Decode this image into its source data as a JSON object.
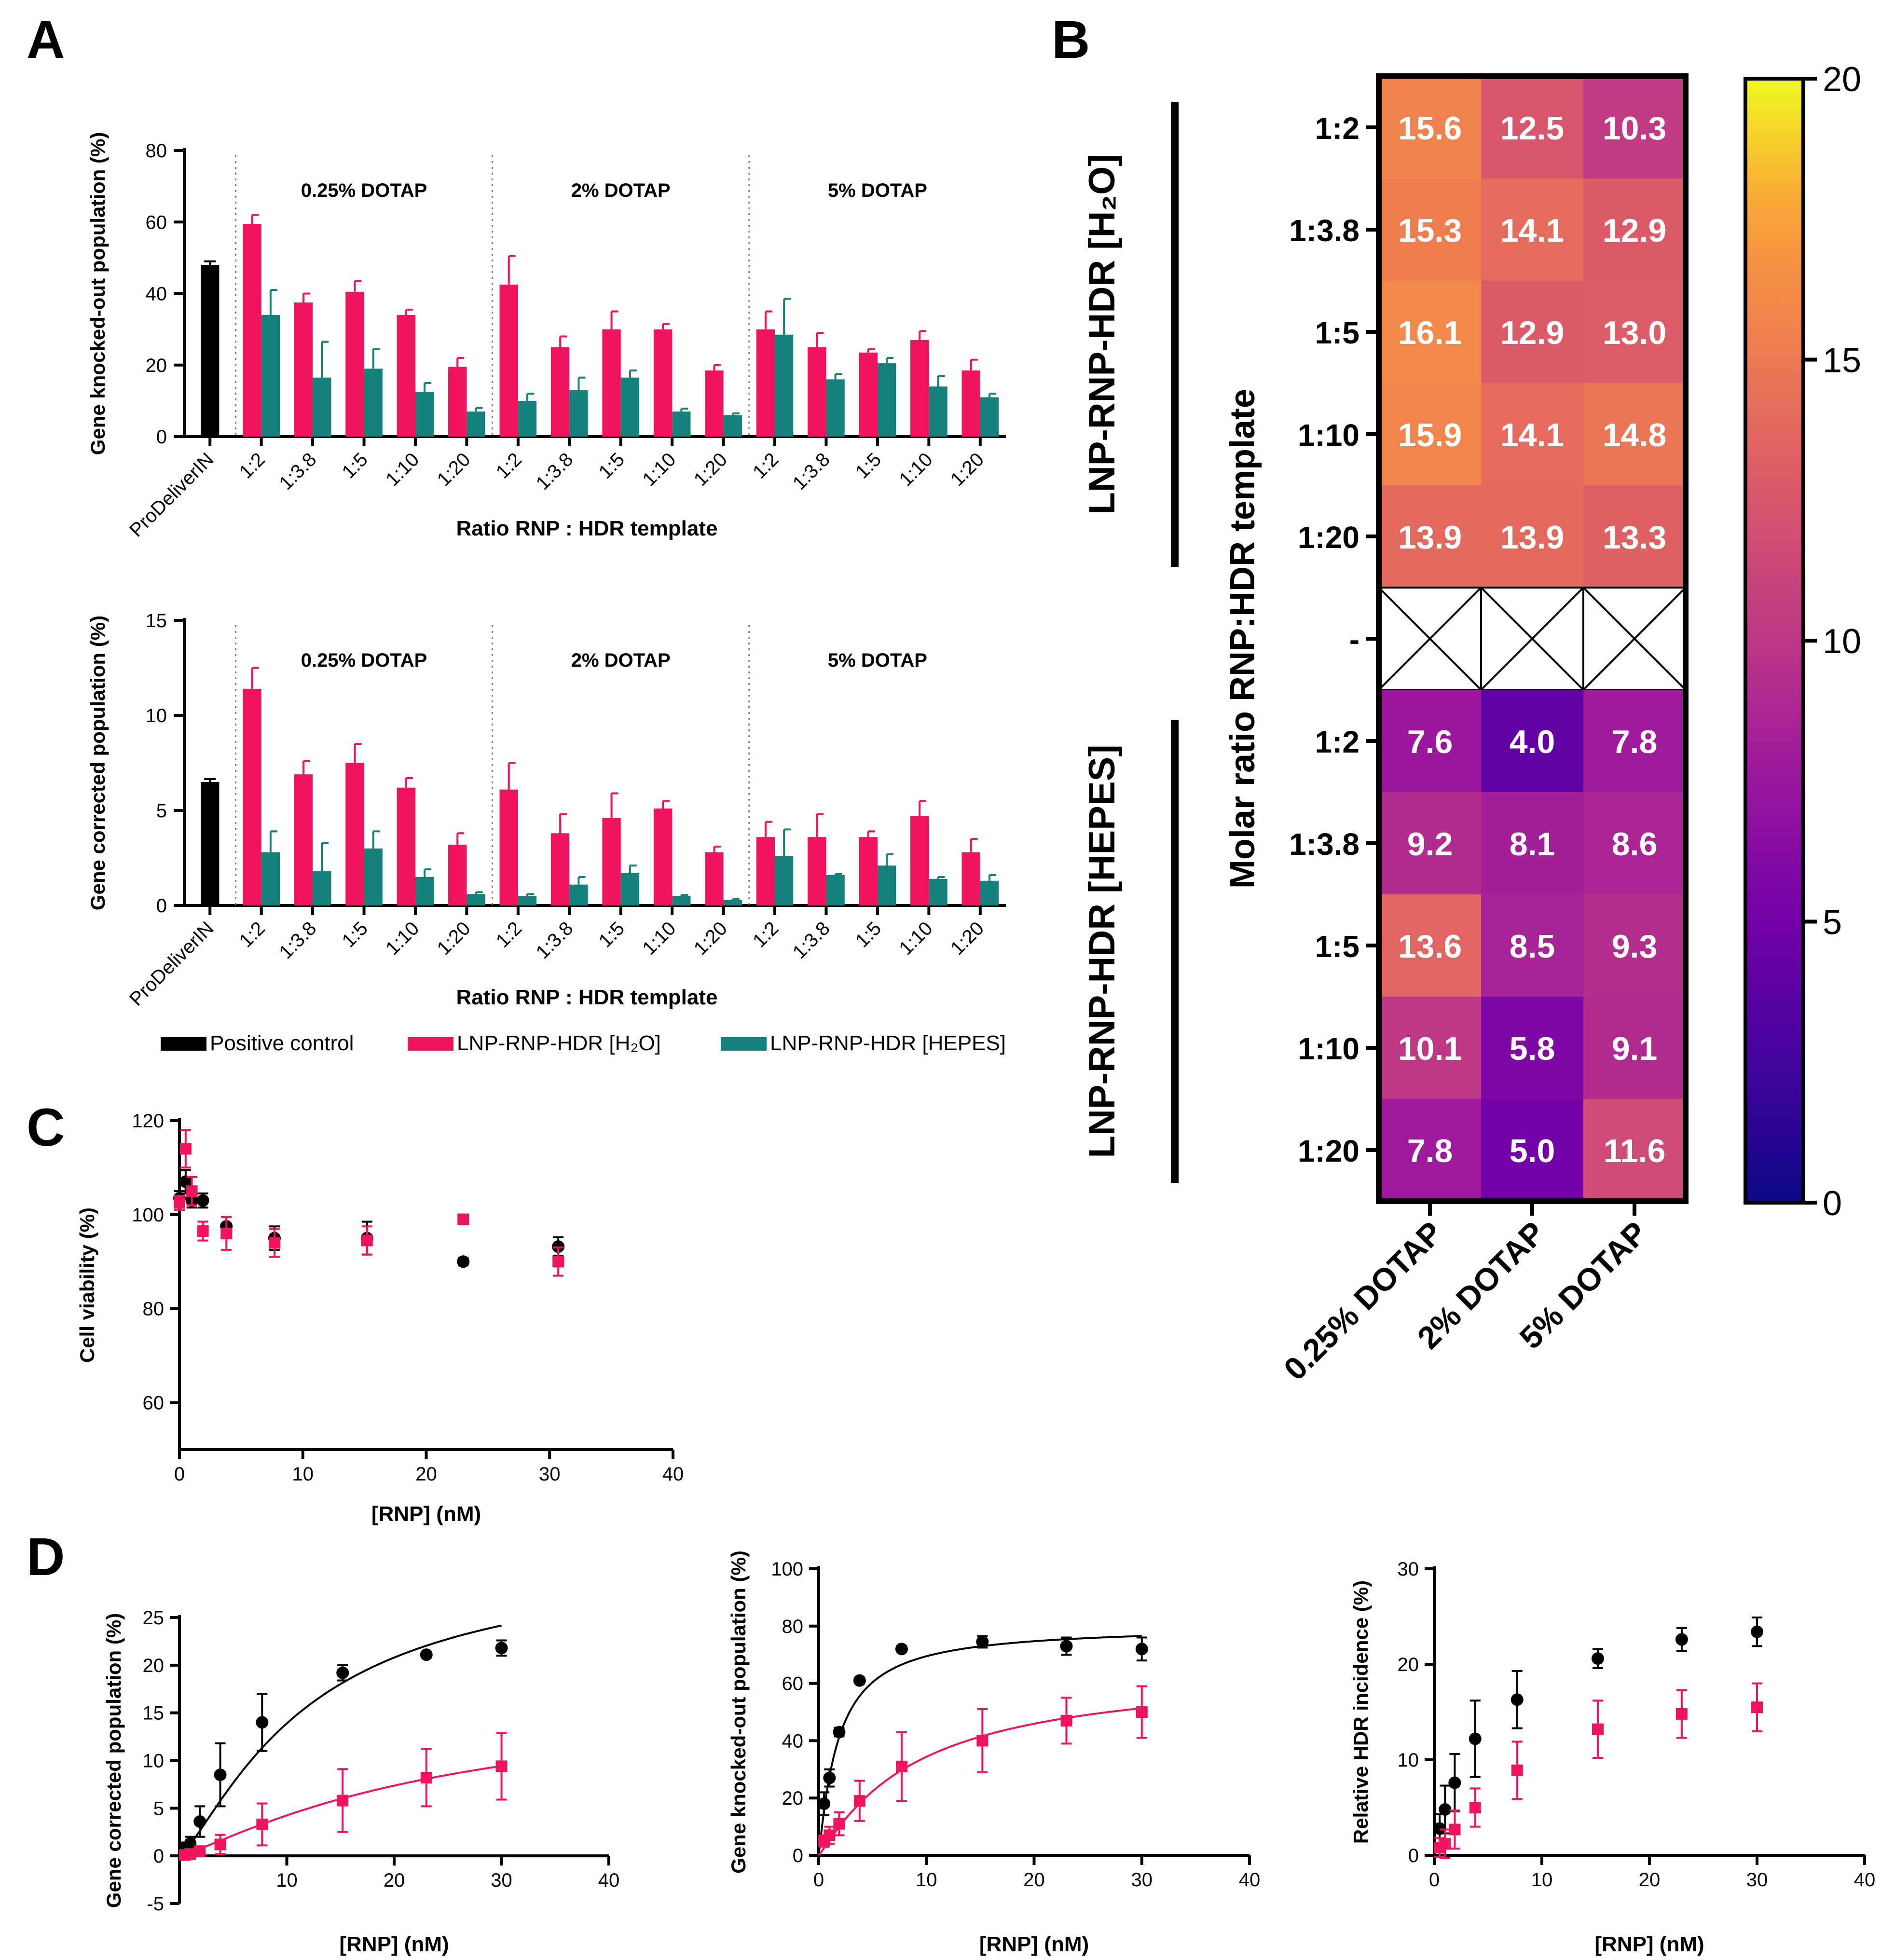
{
  "figure": {
    "panel_labels": [
      "A",
      "B",
      "C",
      "D"
    ],
    "colors": {
      "control": "#000000",
      "h2o": "#f0135e",
      "hepes": "#15817a"
    }
  },
  "chart_data": [
    {
      "id": "A_top",
      "type": "bar",
      "ylabel": "Gene knocked-out population (%)",
      "xlabel": "Ratio RNP : HDR template",
      "ylim": [
        0,
        80
      ],
      "yticks": [
        0,
        20,
        40,
        60,
        80
      ],
      "control": {
        "label": "ProDeliverIN",
        "value": 48,
        "err": 1
      },
      "groups": [
        {
          "label": "0.25% DOTAP",
          "categories": [
            "1:2",
            "1:3.8",
            "1:5",
            "1:10",
            "1:20"
          ],
          "h2o": [
            59.5,
            37.5,
            40.5,
            34,
            19.5
          ],
          "h2o_err": [
            2.5,
            2.5,
            3,
            1.5,
            2.5
          ],
          "hepes": [
            34,
            16.5,
            19,
            12.5,
            7
          ],
          "hepes_err": [
            7,
            10,
            5.5,
            2.5,
            1
          ]
        },
        {
          "label": "2% DOTAP",
          "categories": [
            "1:2",
            "1:3.8",
            "1:5",
            "1:10",
            "1:20"
          ],
          "h2o": [
            42.5,
            25,
            30,
            30,
            18.5
          ],
          "h2o_err": [
            8,
            3,
            5,
            1.5,
            1.5
          ],
          "hepes": [
            10,
            13,
            16.5,
            7,
            6
          ],
          "hepes_err": [
            2,
            3.5,
            2,
            0.8,
            0.5
          ]
        },
        {
          "label": "5% DOTAP",
          "categories": [
            "1:2",
            "1:3.8",
            "1:5",
            "1:10",
            "1:20"
          ],
          "h2o": [
            30,
            25,
            23.5,
            27,
            18.5
          ],
          "h2o_err": [
            5,
            4,
            1,
            2.5,
            3
          ],
          "hepes": [
            28.5,
            16,
            20.5,
            14,
            11
          ],
          "hepes_err": [
            10,
            1.5,
            1.5,
            3,
            1
          ]
        }
      ]
    },
    {
      "id": "A_bottom",
      "type": "bar",
      "ylabel": "Gene corrected population (%)",
      "xlabel": "Ratio RNP : HDR template",
      "ylim": [
        0,
        15
      ],
      "yticks": [
        0,
        5,
        10,
        15
      ],
      "control": {
        "label": "ProDeliverIN",
        "value": 6.5,
        "err": 0.15
      },
      "groups": [
        {
          "label": "0.25% DOTAP",
          "categories": [
            "1:2",
            "1:3.8",
            "1:5",
            "1:10",
            "1:20"
          ],
          "h2o": [
            11.4,
            6.9,
            7.5,
            6.2,
            3.2
          ],
          "h2o_err": [
            1.1,
            0.7,
            1,
            0.5,
            0.6
          ],
          "hepes": [
            2.8,
            1.8,
            3.0,
            1.5,
            0.6
          ],
          "hepes_err": [
            1.1,
            1.5,
            0.9,
            0.4,
            0.1
          ]
        },
        {
          "label": "2% DOTAP",
          "categories": [
            "1:2",
            "1:3.8",
            "1:5",
            "1:10",
            "1:20"
          ],
          "h2o": [
            6.1,
            3.8,
            4.6,
            5.1,
            2.8
          ],
          "h2o_err": [
            1.4,
            1,
            1.3,
            0.4,
            0.3
          ],
          "hepes": [
            0.5,
            1.1,
            1.7,
            0.5,
            0.3
          ],
          "hepes_err": [
            0.1,
            0.4,
            0.4,
            0.05,
            0.05
          ]
        },
        {
          "label": "5% DOTAP",
          "categories": [
            "1:2",
            "1:3.8",
            "1:5",
            "1:10",
            "1:20"
          ],
          "h2o": [
            3.6,
            3.6,
            3.6,
            4.7,
            2.8
          ],
          "h2o_err": [
            0.8,
            1.2,
            0.3,
            0.8,
            0.7
          ],
          "hepes": [
            2.6,
            1.6,
            2.1,
            1.4,
            1.3
          ],
          "hepes_err": [
            1.4,
            0.05,
            0.6,
            0.1,
            0.3
          ]
        }
      ],
      "legend": [
        "Positive control",
        "LNP-RNP-HDR [H₂O]",
        "LNP-RNP-HDR [HEPES]"
      ]
    },
    {
      "id": "B",
      "type": "heatmap",
      "ylabel": "Molar ratio RNP:HDR template",
      "columns": [
        "0.25% DOTAP",
        "2% DOTAP",
        "5% DOTAP"
      ],
      "rows": [
        "1:2",
        "1:3.8",
        "1:5",
        "1:10",
        "1:20",
        "-",
        "1:2",
        "1:3.8",
        "1:5",
        "1:10",
        "1:20"
      ],
      "blocks": [
        "LNP-RNP-HDR [H₂O]",
        "LNP-RNP-HDR [HEPES]"
      ],
      "values": [
        [
          "15.6",
          "12.5",
          "10.3"
        ],
        [
          "15.3",
          "14.1",
          "12.9"
        ],
        [
          "16.1",
          "12.9",
          "13.0"
        ],
        [
          "15.9",
          "14.1",
          "14.8"
        ],
        [
          "13.9",
          "13.9",
          "13.3"
        ],
        null,
        [
          "7.6",
          "4.0",
          "7.8"
        ],
        [
          "9.2",
          "8.1",
          "8.6"
        ],
        [
          "13.6",
          "8.5",
          "9.3"
        ],
        [
          "10.1",
          "5.8",
          "9.1"
        ],
        [
          "7.8",
          "5.0",
          "11.6"
        ]
      ],
      "colorbar": {
        "min": 0,
        "max": 20,
        "ticks": [
          "0",
          "5",
          "10",
          "15",
          "20"
        ]
      }
    },
    {
      "id": "C",
      "type": "scatter",
      "xlabel": "[RNP] (nM)",
      "ylabel": "Cell viability (%)",
      "xlim": [
        0,
        40
      ],
      "ylim": [
        50,
        120
      ],
      "xticks": [
        0,
        10,
        20,
        30,
        40
      ],
      "yticks": [
        60,
        80,
        100,
        120
      ],
      "series": [
        {
          "name": "control",
          "marker": "circle",
          "x": [
            0,
            0.5,
            1,
            1.9,
            3.8,
            7.7,
            15.2,
            23,
            30.7
          ],
          "y": [
            103.5,
            107,
            103,
            103,
            97.5,
            95,
            95,
            90,
            93.2
          ],
          "err": [
            1.5,
            2.5,
            1.5,
            1.5,
            2,
            2.5,
            3.5,
            0.8,
            2
          ]
        },
        {
          "name": "h2o",
          "marker": "square",
          "x": [
            0,
            0.5,
            1,
            1.9,
            3.8,
            7.7,
            15.2,
            23,
            30.7
          ],
          "y": [
            102.5,
            114,
            105,
            96.5,
            96,
            94,
            94.5,
            99,
            90
          ],
          "err": [
            1.5,
            4,
            3,
            2,
            3.5,
            3,
            3,
            0.5,
            3
          ]
        }
      ]
    },
    {
      "id": "D1",
      "type": "scatter",
      "xlabel": "[RNP] (nM)",
      "ylabel": "Gene corrected population (%)",
      "xlim": [
        0,
        40
      ],
      "ylim": [
        -5,
        25
      ],
      "xticks": [
        10,
        20,
        30,
        40
      ],
      "yticks": [
        -5,
        0,
        5,
        10,
        15,
        20,
        25
      ],
      "series": [
        {
          "name": "control",
          "marker": "circle",
          "fit": {
            "vmax": 31.5,
            "k": 12,
            "h": 1.3
          },
          "x": [
            0.5,
            1,
            1.9,
            3.8,
            7.7,
            15.2,
            23,
            30
          ],
          "y": [
            0.8,
            1.3,
            3.6,
            8.5,
            14,
            19.2,
            21.1,
            21.8
          ],
          "err": [
            0.6,
            0.7,
            1.6,
            3.3,
            3,
            0.8,
            0.3,
            0.8
          ]
        },
        {
          "name": "h2o",
          "marker": "square",
          "fit": {
            "vmax": 17,
            "k": 25,
            "h": 1.2
          },
          "x": [
            0.5,
            1,
            1.9,
            3.8,
            7.7,
            15.2,
            23,
            30
          ],
          "y": [
            0.1,
            0.2,
            0.5,
            1.2,
            3.3,
            5.8,
            8.2,
            9.4
          ],
          "err": [
            0.3,
            0.3,
            0.5,
            1,
            2.2,
            3.3,
            3,
            3.5
          ]
        }
      ]
    },
    {
      "id": "D2",
      "type": "scatter",
      "xlabel": "[RNP] (nM)",
      "ylabel": "Gene knocked-out population (%)",
      "xlim": [
        0,
        40
      ],
      "ylim": [
        0,
        100
      ],
      "xticks": [
        0,
        10,
        20,
        30,
        40
      ],
      "yticks": [
        0,
        20,
        40,
        60,
        80,
        100
      ],
      "series": [
        {
          "name": "control",
          "marker": "circle",
          "fit": {
            "vmax": 80,
            "k": 1.8,
            "h": 1.1
          },
          "x": [
            0.5,
            1,
            1.9,
            3.8,
            7.7,
            15.2,
            23,
            30
          ],
          "y": [
            18,
            27,
            43,
            61,
            72,
            74.5,
            73,
            72
          ],
          "err": [
            4,
            3,
            1.5,
            1,
            1,
            2,
            3,
            4
          ]
        },
        {
          "name": "h2o",
          "marker": "square",
          "fit": {
            "vmax": 65,
            "k": 9,
            "h": 1.1
          },
          "x": [
            0.5,
            1,
            1.9,
            3.8,
            7.7,
            15.2,
            23,
            30
          ],
          "y": [
            5,
            7,
            11,
            19,
            31,
            40,
            47,
            50
          ],
          "err": [
            2,
            3,
            4,
            7,
            12,
            11,
            8,
            9
          ]
        }
      ]
    },
    {
      "id": "D3",
      "type": "scatter",
      "xlabel": "[RNP] (nM)",
      "ylabel": "Relative HDR incidence (%)",
      "xlim": [
        0,
        40
      ],
      "ylim": [
        0,
        30
      ],
      "xticks": [
        0,
        10,
        20,
        30,
        40
      ],
      "yticks": [
        0,
        10,
        20,
        30
      ],
      "series": [
        {
          "name": "control",
          "marker": "circle",
          "x": [
            0.5,
            1,
            1.9,
            3.8,
            7.7,
            15.2,
            23,
            30
          ],
          "y": [
            2.8,
            4.8,
            7.6,
            12.2,
            16.3,
            20.6,
            22.6,
            23.4
          ],
          "err": [
            1.5,
            2.5,
            3,
            4,
            3,
            1,
            1.2,
            1.5
          ]
        },
        {
          "name": "h2o",
          "marker": "square",
          "x": [
            0.5,
            1,
            1.9,
            3.8,
            7.7,
            15.2,
            23,
            30
          ],
          "y": [
            0.8,
            1.2,
            2.7,
            5,
            8.9,
            13.2,
            14.8,
            15.5
          ],
          "err": [
            1,
            1.5,
            2,
            2,
            3,
            3,
            2.5,
            2.5
          ]
        }
      ]
    }
  ]
}
